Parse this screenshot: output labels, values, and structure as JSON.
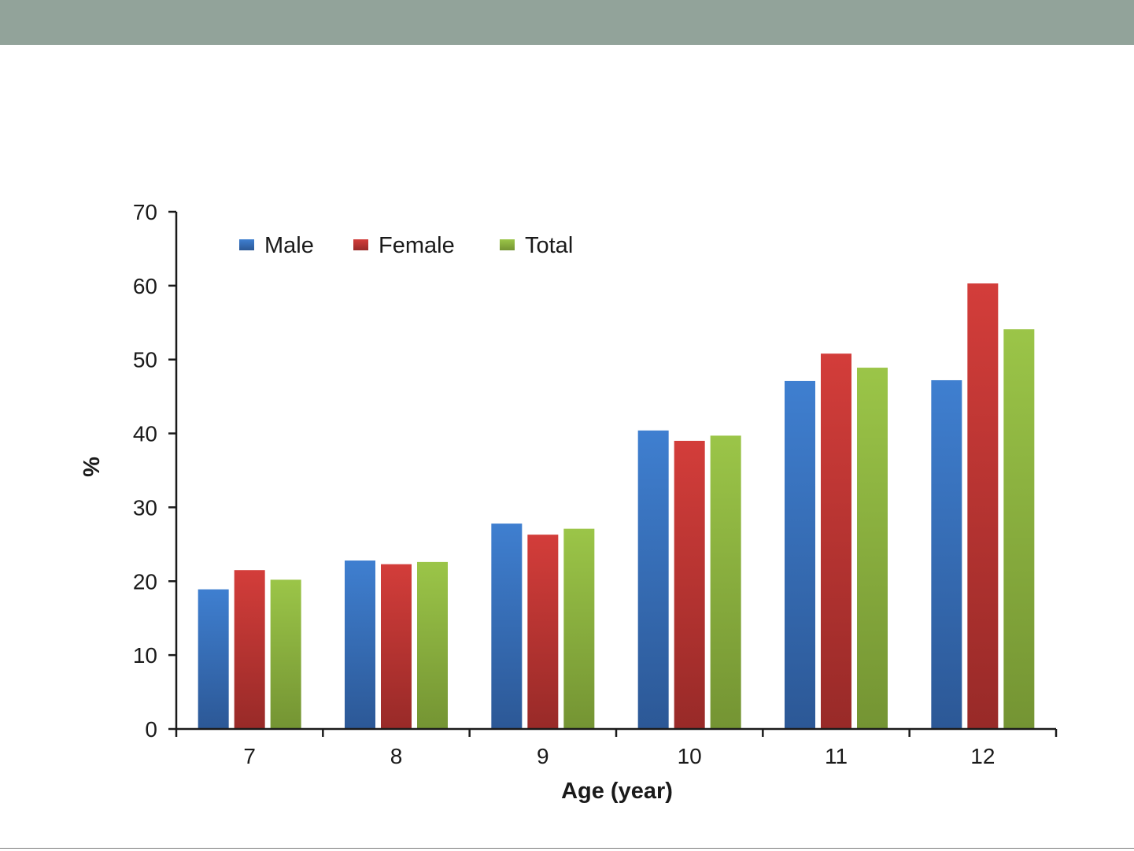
{
  "colors": {
    "top_bar": "#92a39a",
    "bottom_rule": "#7c7c7c",
    "axis": "#1a1a1a",
    "series": {
      "Male": [
        "#3f7fd0",
        "#2c5896"
      ],
      "Female": [
        "#d33d3a",
        "#982a28"
      ],
      "Total": [
        "#9bc548",
        "#749433"
      ]
    }
  },
  "chart_data": {
    "type": "bar",
    "title": "",
    "xlabel": "Age (year)",
    "ylabel": "%",
    "ylim": [
      0,
      70
    ],
    "y_ticks": [
      0,
      10,
      20,
      30,
      40,
      50,
      60,
      70
    ],
    "grid": false,
    "legend_position": "top-left",
    "categories": [
      "7",
      "8",
      "9",
      "10",
      "11",
      "12"
    ],
    "series": [
      {
        "name": "Male",
        "values": [
          18.9,
          22.8,
          27.8,
          40.4,
          47.1,
          47.2
        ]
      },
      {
        "name": "Female",
        "values": [
          21.5,
          22.3,
          26.3,
          39.0,
          50.8,
          60.3
        ]
      },
      {
        "name": "Total",
        "values": [
          20.2,
          22.6,
          27.1,
          39.7,
          48.9,
          54.1
        ]
      }
    ]
  }
}
